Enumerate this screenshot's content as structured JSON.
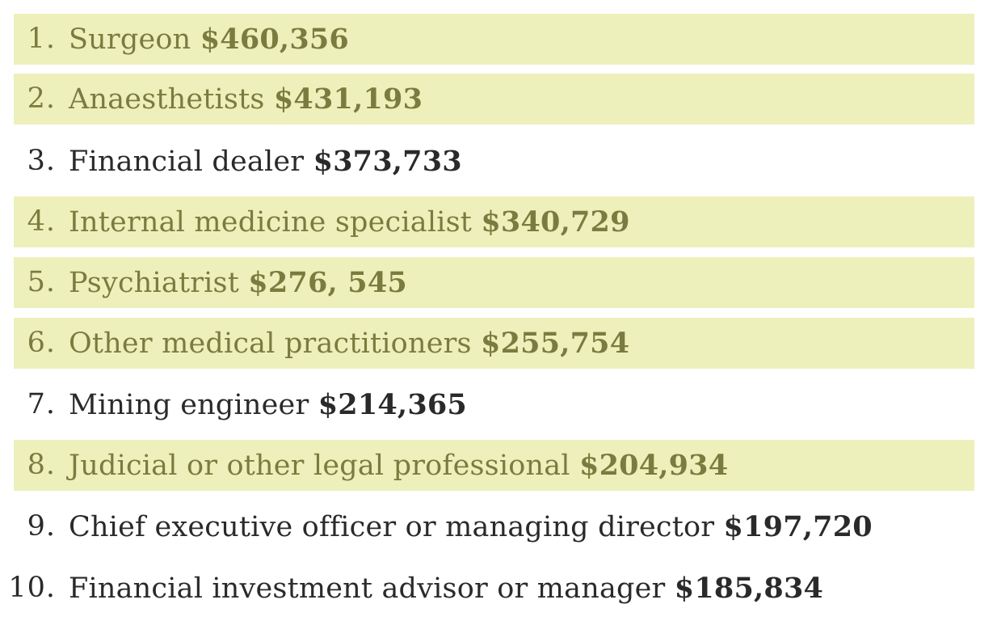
{
  "items": [
    {
      "num": "1.",
      "label": "Surgeon",
      "amount": "$460,356",
      "highlight": true
    },
    {
      "num": "2.",
      "label": "Anaesthetists",
      "amount": "$431,193",
      "highlight": true
    },
    {
      "num": "3.",
      "label": "Financial dealer",
      "amount": "$373,733",
      "highlight": false
    },
    {
      "num": "4.",
      "label": "Internal medicine specialist",
      "amount": "$340,729",
      "highlight": true
    },
    {
      "num": "5.",
      "label": "Psychiatrist",
      "amount": "$276, 545",
      "highlight": true
    },
    {
      "num": "6.",
      "label": "Other medical practitioners",
      "amount": "$255,754",
      "highlight": true
    },
    {
      "num": "7.",
      "label": "Mining engineer",
      "amount": "$214,365",
      "highlight": false
    },
    {
      "num": "8.",
      "label": "Judicial or other legal professional",
      "amount": "$204,934",
      "highlight": true
    },
    {
      "num": "9.",
      "label": "Chief executive officer or managing director",
      "amount": "$197,720",
      "highlight": false
    },
    {
      "num": "10.",
      "label": "Financial investment advisor or manager",
      "amount": "$185,834",
      "highlight": false
    }
  ],
  "colors": {
    "highlight_bg": "#eef0bb",
    "highlight_text": "#7a7c3f",
    "plain_text": "#2a2a2a"
  }
}
